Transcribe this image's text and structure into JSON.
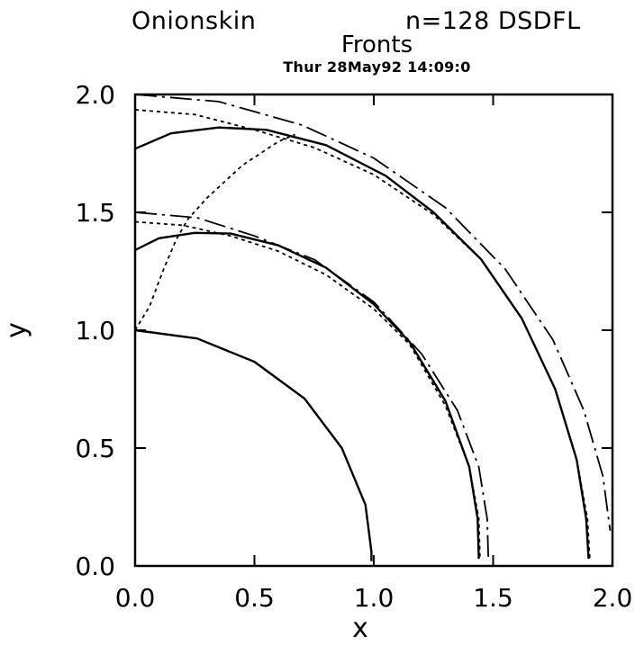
{
  "header": {
    "left": "Onionskin",
    "right": "n=128 DSDFL"
  },
  "chart_data": {
    "type": "line",
    "title": "Fronts",
    "subtitle": "Thur 28May92 14:09:0",
    "xlabel": "x",
    "ylabel": "y",
    "xlim": [
      0.0,
      2.0
    ],
    "ylim": [
      0.0,
      2.0
    ],
    "xticks": [
      "0.0",
      "0.5",
      "1.0",
      "1.5",
      "2.0"
    ],
    "yticks": [
      "0.0",
      "0.5",
      "1.0",
      "1.5",
      "2.0"
    ],
    "grid": false,
    "legend": "none",
    "series": [
      {
        "style": "solid",
        "points": [
          [
            0.0,
            1.0
          ],
          [
            0.26,
            0.965
          ],
          [
            0.5,
            0.866
          ],
          [
            0.71,
            0.71
          ],
          [
            0.866,
            0.5
          ],
          [
            0.965,
            0.26
          ],
          [
            0.99,
            0.06
          ],
          [
            0.99,
            0.02
          ]
        ]
      },
      {
        "style": "solid",
        "points": [
          [
            0.0,
            1.34
          ],
          [
            0.1,
            1.39
          ],
          [
            0.25,
            1.413
          ],
          [
            0.4,
            1.41
          ],
          [
            0.6,
            1.36
          ],
          [
            0.8,
            1.265
          ],
          [
            1.0,
            1.11
          ],
          [
            1.15,
            0.95
          ],
          [
            1.3,
            0.7
          ],
          [
            1.4,
            0.42
          ],
          [
            1.435,
            0.2
          ],
          [
            1.44,
            0.03
          ]
        ]
      },
      {
        "style": "dotted",
        "points": [
          [
            0.0,
            1.46
          ],
          [
            0.2,
            1.445
          ],
          [
            0.4,
            1.4
          ],
          [
            0.6,
            1.335
          ],
          [
            0.8,
            1.235
          ],
          [
            1.0,
            1.09
          ],
          [
            1.15,
            0.94
          ],
          [
            1.3,
            0.68
          ],
          [
            1.4,
            0.42
          ],
          [
            1.44,
            0.2
          ],
          [
            1.445,
            0.03
          ]
        ]
      },
      {
        "style": "dashdot",
        "points": [
          [
            0.0,
            1.5
          ],
          [
            0.26,
            1.477
          ],
          [
            0.5,
            1.4
          ],
          [
            0.75,
            1.3
          ],
          [
            1.0,
            1.12
          ],
          [
            1.2,
            0.9
          ],
          [
            1.35,
            0.66
          ],
          [
            1.44,
            0.42
          ],
          [
            1.475,
            0.2
          ],
          [
            1.48,
            0.03
          ]
        ]
      },
      {
        "style": "solid",
        "points": [
          [
            0.0,
            1.77
          ],
          [
            0.15,
            1.835
          ],
          [
            0.35,
            1.86
          ],
          [
            0.55,
            1.85
          ],
          [
            0.8,
            1.785
          ],
          [
            1.05,
            1.655
          ],
          [
            1.25,
            1.5
          ],
          [
            1.45,
            1.3
          ],
          [
            1.62,
            1.05
          ],
          [
            1.76,
            0.75
          ],
          [
            1.85,
            0.45
          ],
          [
            1.89,
            0.2
          ],
          [
            1.9,
            0.03
          ]
        ]
      },
      {
        "style": "dotted",
        "points": [
          [
            0.0,
            1.935
          ],
          [
            0.25,
            1.915
          ],
          [
            0.5,
            1.85
          ],
          [
            0.75,
            1.775
          ],
          [
            1.0,
            1.66
          ],
          [
            1.25,
            1.49
          ],
          [
            1.45,
            1.3
          ],
          [
            1.62,
            1.05
          ],
          [
            1.76,
            0.75
          ],
          [
            1.85,
            0.45
          ],
          [
            1.895,
            0.2
          ],
          [
            1.905,
            0.03
          ]
        ]
      },
      {
        "style": "dashdot",
        "points": [
          [
            0.0,
            2.0
          ],
          [
            0.35,
            1.97
          ],
          [
            0.7,
            1.87
          ],
          [
            1.0,
            1.73
          ],
          [
            1.3,
            1.52
          ],
          [
            1.55,
            1.26
          ],
          [
            1.75,
            0.96
          ],
          [
            1.88,
            0.66
          ],
          [
            1.96,
            0.38
          ],
          [
            1.99,
            0.15
          ]
        ]
      },
      {
        "style": "dotted",
        "points": [
          [
            0.0,
            1.0
          ],
          [
            0.06,
            1.1
          ],
          [
            0.12,
            1.26
          ],
          [
            0.17,
            1.38
          ],
          [
            0.22,
            1.47
          ],
          [
            0.3,
            1.56
          ],
          [
            0.45,
            1.7
          ],
          [
            0.6,
            1.8
          ],
          [
            0.67,
            1.83
          ]
        ]
      }
    ]
  }
}
